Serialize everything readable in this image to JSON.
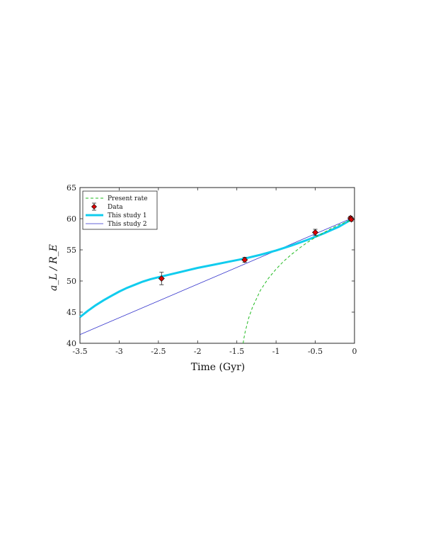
{
  "chart_data": {
    "type": "line",
    "xlabel": "Time (Gyr)",
    "ylabel": "a_L / R_E",
    "xlim": [
      -3.5,
      0
    ],
    "ylim": [
      40,
      65
    ],
    "xticks": [
      -3.5,
      -3,
      -2.5,
      -2,
      -1.5,
      -1,
      -0.5,
      0
    ],
    "xtick_labels": [
      "-3.5",
      "-3",
      "-2.5",
      "-2",
      "-1.5",
      "-1",
      "-0.5",
      "0"
    ],
    "yticks": [
      40,
      45,
      50,
      55,
      60,
      65
    ],
    "ytick_labels": [
      "40",
      "45",
      "50",
      "55",
      "60",
      "65"
    ],
    "grid": false,
    "legend_position": "top-left",
    "series": [
      {
        "name": "Present rate",
        "style": "dashed",
        "color": "#22bb22",
        "x": [
          -1.42,
          -1.4,
          -1.35,
          -1.3,
          -1.2,
          -1.1,
          -1.0,
          -0.9,
          -0.8,
          -0.7,
          -0.6,
          -0.5,
          -0.4,
          -0.3,
          -0.2,
          -0.1,
          -0.05
        ],
        "y": [
          40.0,
          41.5,
          44.0,
          45.8,
          48.5,
          50.4,
          51.9,
          53.2,
          54.3,
          55.3,
          56.2,
          57.0,
          57.7,
          58.4,
          59.0,
          59.5,
          59.8
        ]
      },
      {
        "name": "Data",
        "style": "errorbar",
        "color": "#dd0000",
        "x": [
          -2.46,
          -1.4,
          -0.5,
          -0.05,
          -0.04
        ],
        "y": [
          50.4,
          53.4,
          57.8,
          60.1,
          59.9
        ],
        "err": [
          1.0,
          0.4,
          0.5,
          0.3,
          0.3
        ]
      },
      {
        "name": "This study 1",
        "style": "thick",
        "color": "#11ccee",
        "x": [
          -3.5,
          -3.4,
          -3.3,
          -3.2,
          -3.1,
          -3.0,
          -2.9,
          -2.8,
          -2.7,
          -2.6,
          -2.5,
          -2.4,
          -2.2,
          -2.0,
          -1.8,
          -1.6,
          -1.4,
          -1.2,
          -1.0,
          -0.8,
          -0.6,
          -0.4,
          -0.2,
          -0.05
        ],
        "y": [
          44.2,
          45.2,
          46.1,
          46.9,
          47.6,
          48.3,
          48.9,
          49.4,
          49.9,
          50.3,
          50.6,
          50.9,
          51.5,
          52.1,
          52.6,
          53.1,
          53.6,
          54.2,
          54.9,
          55.7,
          56.6,
          57.6,
          58.7,
          59.8
        ]
      },
      {
        "name": "This study 2",
        "style": "thin",
        "color": "#3333cc",
        "x": [
          -3.5,
          -0.05
        ],
        "y": [
          41.4,
          60.0
        ]
      }
    ]
  }
}
